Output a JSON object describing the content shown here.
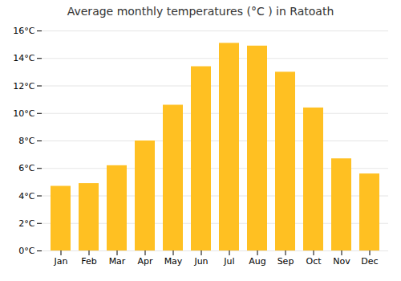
{
  "chart_data": {
    "type": "bar",
    "title": "Average monthly temperatures (°C ) in Ratoath",
    "categories": [
      "Jan",
      "Feb",
      "Mar",
      "Apr",
      "May",
      "Jun",
      "Jul",
      "Aug",
      "Sep",
      "Oct",
      "Nov",
      "Dec"
    ],
    "values": [
      4.7,
      4.9,
      6.2,
      8.0,
      10.6,
      13.4,
      15.1,
      14.9,
      13.0,
      10.4,
      6.7,
      5.6
    ],
    "color": "#FFC022",
    "ylim": [
      0,
      16
    ],
    "yticks": [
      {
        "value": 0,
        "label": "0°C"
      },
      {
        "value": 2,
        "label": "2°C"
      },
      {
        "value": 4,
        "label": "4°C"
      },
      {
        "value": 6,
        "label": "6°C"
      },
      {
        "value": 8,
        "label": "8°C"
      },
      {
        "value": 10,
        "label": "10°C"
      },
      {
        "value": 12,
        "label": "12°C"
      },
      {
        "value": 14,
        "label": "14°C"
      },
      {
        "value": 16,
        "label": "16°C"
      }
    ],
    "grid": true
  }
}
